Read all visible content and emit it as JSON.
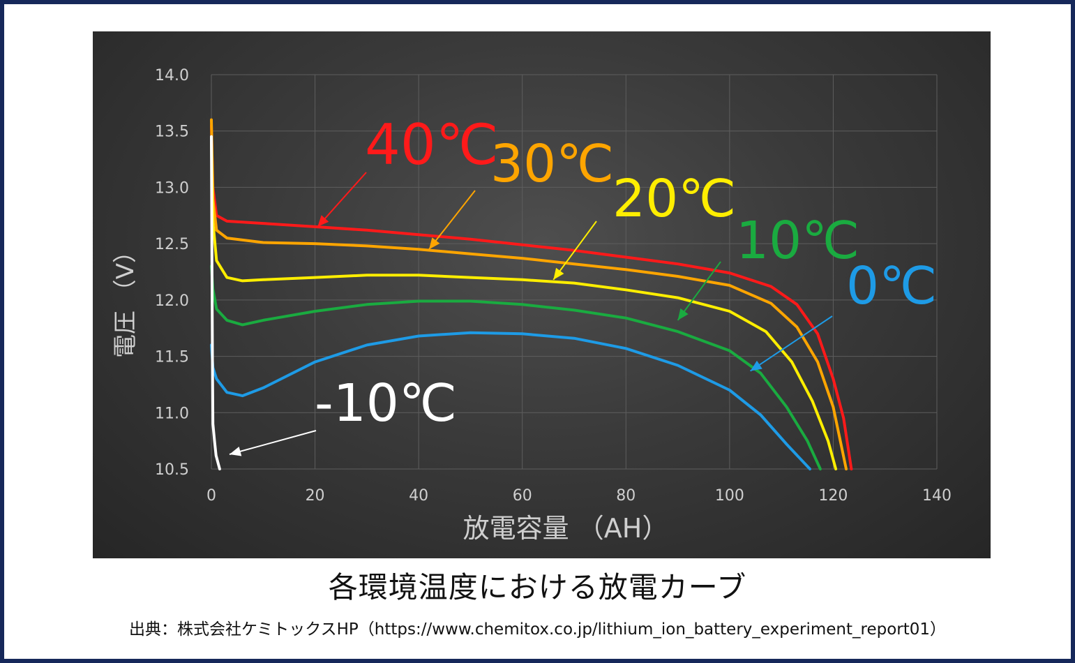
{
  "chart_data": {
    "type": "line",
    "xlabel": "放電容量 （AH）",
    "ylabel": "電圧 （V）",
    "xlim": [
      0,
      140
    ],
    "ylim": [
      10.5,
      14.0
    ],
    "x_ticks": [
      "0",
      "20",
      "40",
      "60",
      "80",
      "100",
      "120",
      "140"
    ],
    "y_ticks": [
      "10.5",
      "11.0",
      "11.5",
      "12.0",
      "12.5",
      "13.0",
      "13.5",
      "14.0"
    ],
    "grid": true,
    "series": [
      {
        "name": "40℃",
        "color": "#ff1a1a",
        "points": [
          [
            0,
            13.55
          ],
          [
            0.3,
            13.0
          ],
          [
            1,
            12.75
          ],
          [
            3,
            12.7
          ],
          [
            10,
            12.68
          ],
          [
            20,
            12.65
          ],
          [
            30,
            12.62
          ],
          [
            40,
            12.58
          ],
          [
            50,
            12.54
          ],
          [
            60,
            12.49
          ],
          [
            70,
            12.44
          ],
          [
            80,
            12.38
          ],
          [
            90,
            12.32
          ],
          [
            100,
            12.24
          ],
          [
            108,
            12.12
          ],
          [
            113,
            11.96
          ],
          [
            117,
            11.7
          ],
          [
            120,
            11.3
          ],
          [
            122,
            10.95
          ],
          [
            123.5,
            10.5
          ]
        ]
      },
      {
        "name": "30℃",
        "color": "#ffa500",
        "points": [
          [
            0,
            13.6
          ],
          [
            0.3,
            12.9
          ],
          [
            1,
            12.62
          ],
          [
            3,
            12.55
          ],
          [
            10,
            12.51
          ],
          [
            20,
            12.5
          ],
          [
            30,
            12.48
          ],
          [
            40,
            12.45
          ],
          [
            50,
            12.41
          ],
          [
            60,
            12.37
          ],
          [
            70,
            12.32
          ],
          [
            80,
            12.27
          ],
          [
            90,
            12.21
          ],
          [
            100,
            12.13
          ],
          [
            108,
            11.97
          ],
          [
            113,
            11.76
          ],
          [
            117,
            11.45
          ],
          [
            120,
            11.05
          ],
          [
            122.5,
            10.5
          ]
        ]
      },
      {
        "name": "20℃",
        "color": "#ffee00",
        "points": [
          [
            0,
            13.4
          ],
          [
            0.3,
            12.7
          ],
          [
            1,
            12.35
          ],
          [
            3,
            12.2
          ],
          [
            6,
            12.17
          ],
          [
            10,
            12.18
          ],
          [
            20,
            12.2
          ],
          [
            30,
            12.22
          ],
          [
            40,
            12.22
          ],
          [
            50,
            12.2
          ],
          [
            60,
            12.18
          ],
          [
            70,
            12.15
          ],
          [
            80,
            12.09
          ],
          [
            90,
            12.02
          ],
          [
            100,
            11.9
          ],
          [
            107,
            11.72
          ],
          [
            112,
            11.45
          ],
          [
            116,
            11.1
          ],
          [
            119,
            10.75
          ],
          [
            120.5,
            10.5
          ]
        ]
      },
      {
        "name": "10℃",
        "color": "#1aab40",
        "points": [
          [
            0,
            12.3
          ],
          [
            0.3,
            12.1
          ],
          [
            1,
            11.92
          ],
          [
            3,
            11.82
          ],
          [
            6,
            11.78
          ],
          [
            10,
            11.82
          ],
          [
            20,
            11.9
          ],
          [
            30,
            11.96
          ],
          [
            40,
            11.99
          ],
          [
            50,
            11.99
          ],
          [
            60,
            11.96
          ],
          [
            70,
            11.91
          ],
          [
            80,
            11.84
          ],
          [
            90,
            11.72
          ],
          [
            100,
            11.55
          ],
          [
            106,
            11.35
          ],
          [
            111,
            11.05
          ],
          [
            115,
            10.75
          ],
          [
            117.5,
            10.5
          ]
        ]
      },
      {
        "name": "0℃",
        "color": "#1e9be6",
        "points": [
          [
            0,
            11.6
          ],
          [
            0.3,
            11.4
          ],
          [
            1,
            11.3
          ],
          [
            3,
            11.18
          ],
          [
            6,
            11.15
          ],
          [
            10,
            11.22
          ],
          [
            20,
            11.45
          ],
          [
            30,
            11.6
          ],
          [
            40,
            11.68
          ],
          [
            50,
            11.71
          ],
          [
            60,
            11.7
          ],
          [
            70,
            11.66
          ],
          [
            80,
            11.57
          ],
          [
            90,
            11.42
          ],
          [
            100,
            11.2
          ],
          [
            106,
            10.98
          ],
          [
            111,
            10.72
          ],
          [
            115.5,
            10.5
          ]
        ]
      },
      {
        "name": "-10℃",
        "color": "#ffffff",
        "points": [
          [
            0,
            13.45
          ],
          [
            0.1,
            12.5
          ],
          [
            0.2,
            11.5
          ],
          [
            0.3,
            10.9
          ],
          [
            0.6,
            10.75
          ],
          [
            0.9,
            10.62
          ],
          [
            1.3,
            10.55
          ],
          [
            1.6,
            10.5
          ]
        ]
      }
    ],
    "annotations": [
      {
        "text": "40℃",
        "color": "#ff1a1a",
        "arrow_to": [
          20.5,
          12.65
        ]
      },
      {
        "text": "30℃",
        "color": "#ffa500",
        "arrow_to": [
          42,
          12.45
        ]
      },
      {
        "text": "20℃",
        "color": "#ffee00",
        "arrow_to": [
          66,
          12.18
        ]
      },
      {
        "text": "10℃",
        "color": "#1aab40",
        "arrow_to": [
          90,
          11.82
        ]
      },
      {
        "text": "0℃",
        "color": "#1e9be6",
        "arrow_to": [
          104,
          11.37
        ]
      },
      {
        "text": "-10℃",
        "color": "#ffffff",
        "arrow_to": [
          3.5,
          10.63
        ]
      }
    ]
  },
  "caption": "各環境温度における放電カーブ",
  "source": "出典：株式会社ケミトックスHP（https://www.chemitox.co.jp/lithium_ion_battery_experiment_report01）",
  "colors": {
    "frame": "#16285a",
    "grid": "#5e5e5e",
    "axis_text": "#cfcfcf"
  }
}
